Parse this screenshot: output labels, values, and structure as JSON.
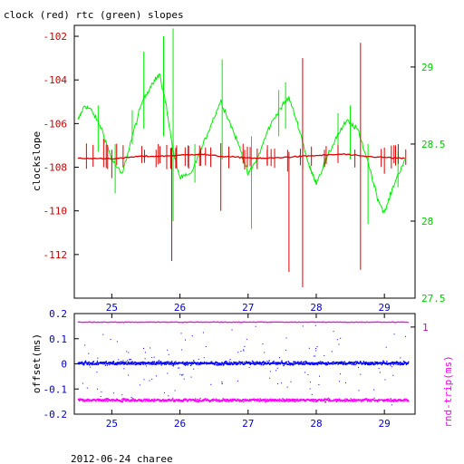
{
  "chart_data": [
    {
      "type": "line",
      "title": "clock (red) rtc (green) slopes",
      "ylabel": "clockslope",
      "xlim": [
        24.45,
        29.45
      ],
      "ylim": [
        -114.0,
        -101.5
      ],
      "y2lim": [
        27.5,
        29.27
      ],
      "x_ticks": [
        25,
        26,
        27,
        28,
        29
      ],
      "x_tick_labels": [
        "25",
        "26",
        "27",
        "28",
        "29"
      ],
      "y_ticks": [
        -102,
        -104,
        -106,
        -108,
        -110,
        -112
      ],
      "y_tick_labels": [
        "-102",
        "-104",
        "-106",
        "-108",
        "-110",
        "-112"
      ],
      "y2_ticks": [
        29,
        28.5,
        28,
        27.5
      ],
      "y2_tick_labels": [
        "29",
        "28.5",
        "28",
        "27.5"
      ],
      "colors": {
        "clock": "#e00000",
        "rtc": "#00ee00",
        "axis_left": "#cc0000",
        "axis_right": "#00cc00"
      },
      "series": [
        {
          "axis": "left",
          "x": [
            24.5,
            24.8,
            25.1,
            25.4,
            25.7,
            26.0,
            26.3,
            26.6,
            26.9,
            27.2,
            27.5,
            27.8,
            28.1,
            28.4,
            28.7,
            29.0,
            29.3
          ],
          "values": [
            -107.6,
            -107.6,
            -107.6,
            -107.5,
            -107.5,
            -107.45,
            -107.4,
            -107.5,
            -107.55,
            -107.6,
            -107.55,
            -107.5,
            -107.45,
            -107.4,
            -107.5,
            -107.55,
            -107.6
          ]
        },
        {
          "axis": "right",
          "x": [
            24.5,
            24.6,
            24.7,
            24.85,
            25.0,
            25.15,
            25.3,
            25.45,
            25.6,
            25.7,
            25.8,
            25.9,
            26.0,
            26.15,
            26.3,
            26.45,
            26.6,
            26.75,
            26.9,
            27.0,
            27.15,
            27.3,
            27.45,
            27.6,
            27.75,
            27.9,
            28.0,
            28.15,
            28.3,
            28.45,
            28.6,
            28.75,
            28.9,
            29.0,
            29.15,
            29.3
          ],
          "values": [
            28.65,
            28.75,
            28.72,
            28.6,
            28.4,
            28.3,
            28.55,
            28.78,
            28.9,
            28.95,
            28.75,
            28.45,
            28.28,
            28.3,
            28.45,
            28.62,
            28.78,
            28.62,
            28.45,
            28.3,
            28.42,
            28.6,
            28.72,
            28.8,
            28.6,
            28.35,
            28.25,
            28.4,
            28.55,
            28.65,
            28.6,
            28.4,
            28.15,
            28.05,
            28.25,
            28.4
          ]
        }
      ],
      "spikes_left": [
        {
          "x": 24.88,
          "y1": -106.7,
          "y2": -108.0
        },
        {
          "x": 25.0,
          "y1": -107.2,
          "y2": -108.5
        },
        {
          "x": 25.48,
          "y1": -107.2,
          "y2": -107.8
        },
        {
          "x": 25.65,
          "y1": -107.2,
          "y2": -108.0
        },
        {
          "x": 25.88,
          "y1": -107.1,
          "y2": -112.3
        },
        {
          "x": 26.12,
          "y1": -107.0,
          "y2": -108.0
        },
        {
          "x": 26.6,
          "y1": -106.9,
          "y2": -110.0
        },
        {
          "x": 26.95,
          "y1": -107.2,
          "y2": -108.1
        },
        {
          "x": 27.28,
          "y1": -107.2,
          "y2": -107.9
        },
        {
          "x": 27.58,
          "y1": -107.2,
          "y2": -108.2
        },
        {
          "x": 27.6,
          "y1": -107.3,
          "y2": -112.8
        },
        {
          "x": 27.8,
          "y1": -103.0,
          "y2": -113.5
        },
        {
          "x": 28.12,
          "y1": -107.2,
          "y2": -108.0
        },
        {
          "x": 28.65,
          "y1": -102.3,
          "y2": -112.7
        },
        {
          "x": 29.0,
          "y1": -107.1,
          "y2": -108.3
        }
      ],
      "spikes_right": [
        {
          "x": 24.8,
          "y1": 28.75,
          "y2": 28.45
        },
        {
          "x": 25.05,
          "y1": 28.5,
          "y2": 28.18
        },
        {
          "x": 25.3,
          "y1": 28.72,
          "y2": 28.5
        },
        {
          "x": 25.47,
          "y1": 29.1,
          "y2": 28.6
        },
        {
          "x": 25.76,
          "y1": 29.2,
          "y2": 28.55
        },
        {
          "x": 25.9,
          "y1": 29.25,
          "y2": 28.0
        },
        {
          "x": 26.22,
          "y1": 28.5,
          "y2": 28.25
        },
        {
          "x": 26.62,
          "y1": 29.05,
          "y2": 28.4
        },
        {
          "x": 27.05,
          "y1": 28.55,
          "y2": 27.95
        },
        {
          "x": 27.45,
          "y1": 28.85,
          "y2": 28.55
        },
        {
          "x": 27.55,
          "y1": 28.9,
          "y2": 28.6
        },
        {
          "x": 28.32,
          "y1": 28.7,
          "y2": 28.45
        },
        {
          "x": 28.5,
          "y1": 28.75,
          "y2": 28.4
        },
        {
          "x": 28.76,
          "y1": 28.5,
          "y2": 27.98
        },
        {
          "x": 29.2,
          "y1": 28.45,
          "y2": 28.22
        }
      ]
    },
    {
      "type": "scatter",
      "ylabel": "offset(ms)",
      "y2label": "rnd-trip(ms)",
      "xlim": [
        24.45,
        29.45
      ],
      "ylim": [
        -0.2,
        0.2
      ],
      "x_ticks": [
        25,
        26,
        27,
        28,
        29
      ],
      "x_tick_labels": [
        "25",
        "26",
        "27",
        "28",
        "29"
      ],
      "y_ticks": [
        0.2,
        0.1,
        0,
        -0.1,
        -0.2
      ],
      "y_tick_labels": [
        "0.2",
        "0.1",
        "0",
        "-0.1",
        "-0.2"
      ],
      "y2_ticks": [
        1
      ],
      "y2_tick_labels": [
        "1"
      ],
      "colors": {
        "offset": "#0000ff",
        "roundtrip": "#ff00ff",
        "axis_left": "#0000cc",
        "axis_right": "#cc00cc"
      },
      "series": [
        {
          "axis": "left",
          "x_range": [
            24.5,
            29.35
          ],
          "center": 0.005,
          "spread": 0.012,
          "scatter_spread": 0.17
        },
        {
          "axis": "right",
          "x_range": [
            24.5,
            29.35
          ],
          "center": -0.142,
          "spread": 0.01,
          "top_band": 0.168
        }
      ],
      "footer": "2012-06-24 charee"
    }
  ]
}
